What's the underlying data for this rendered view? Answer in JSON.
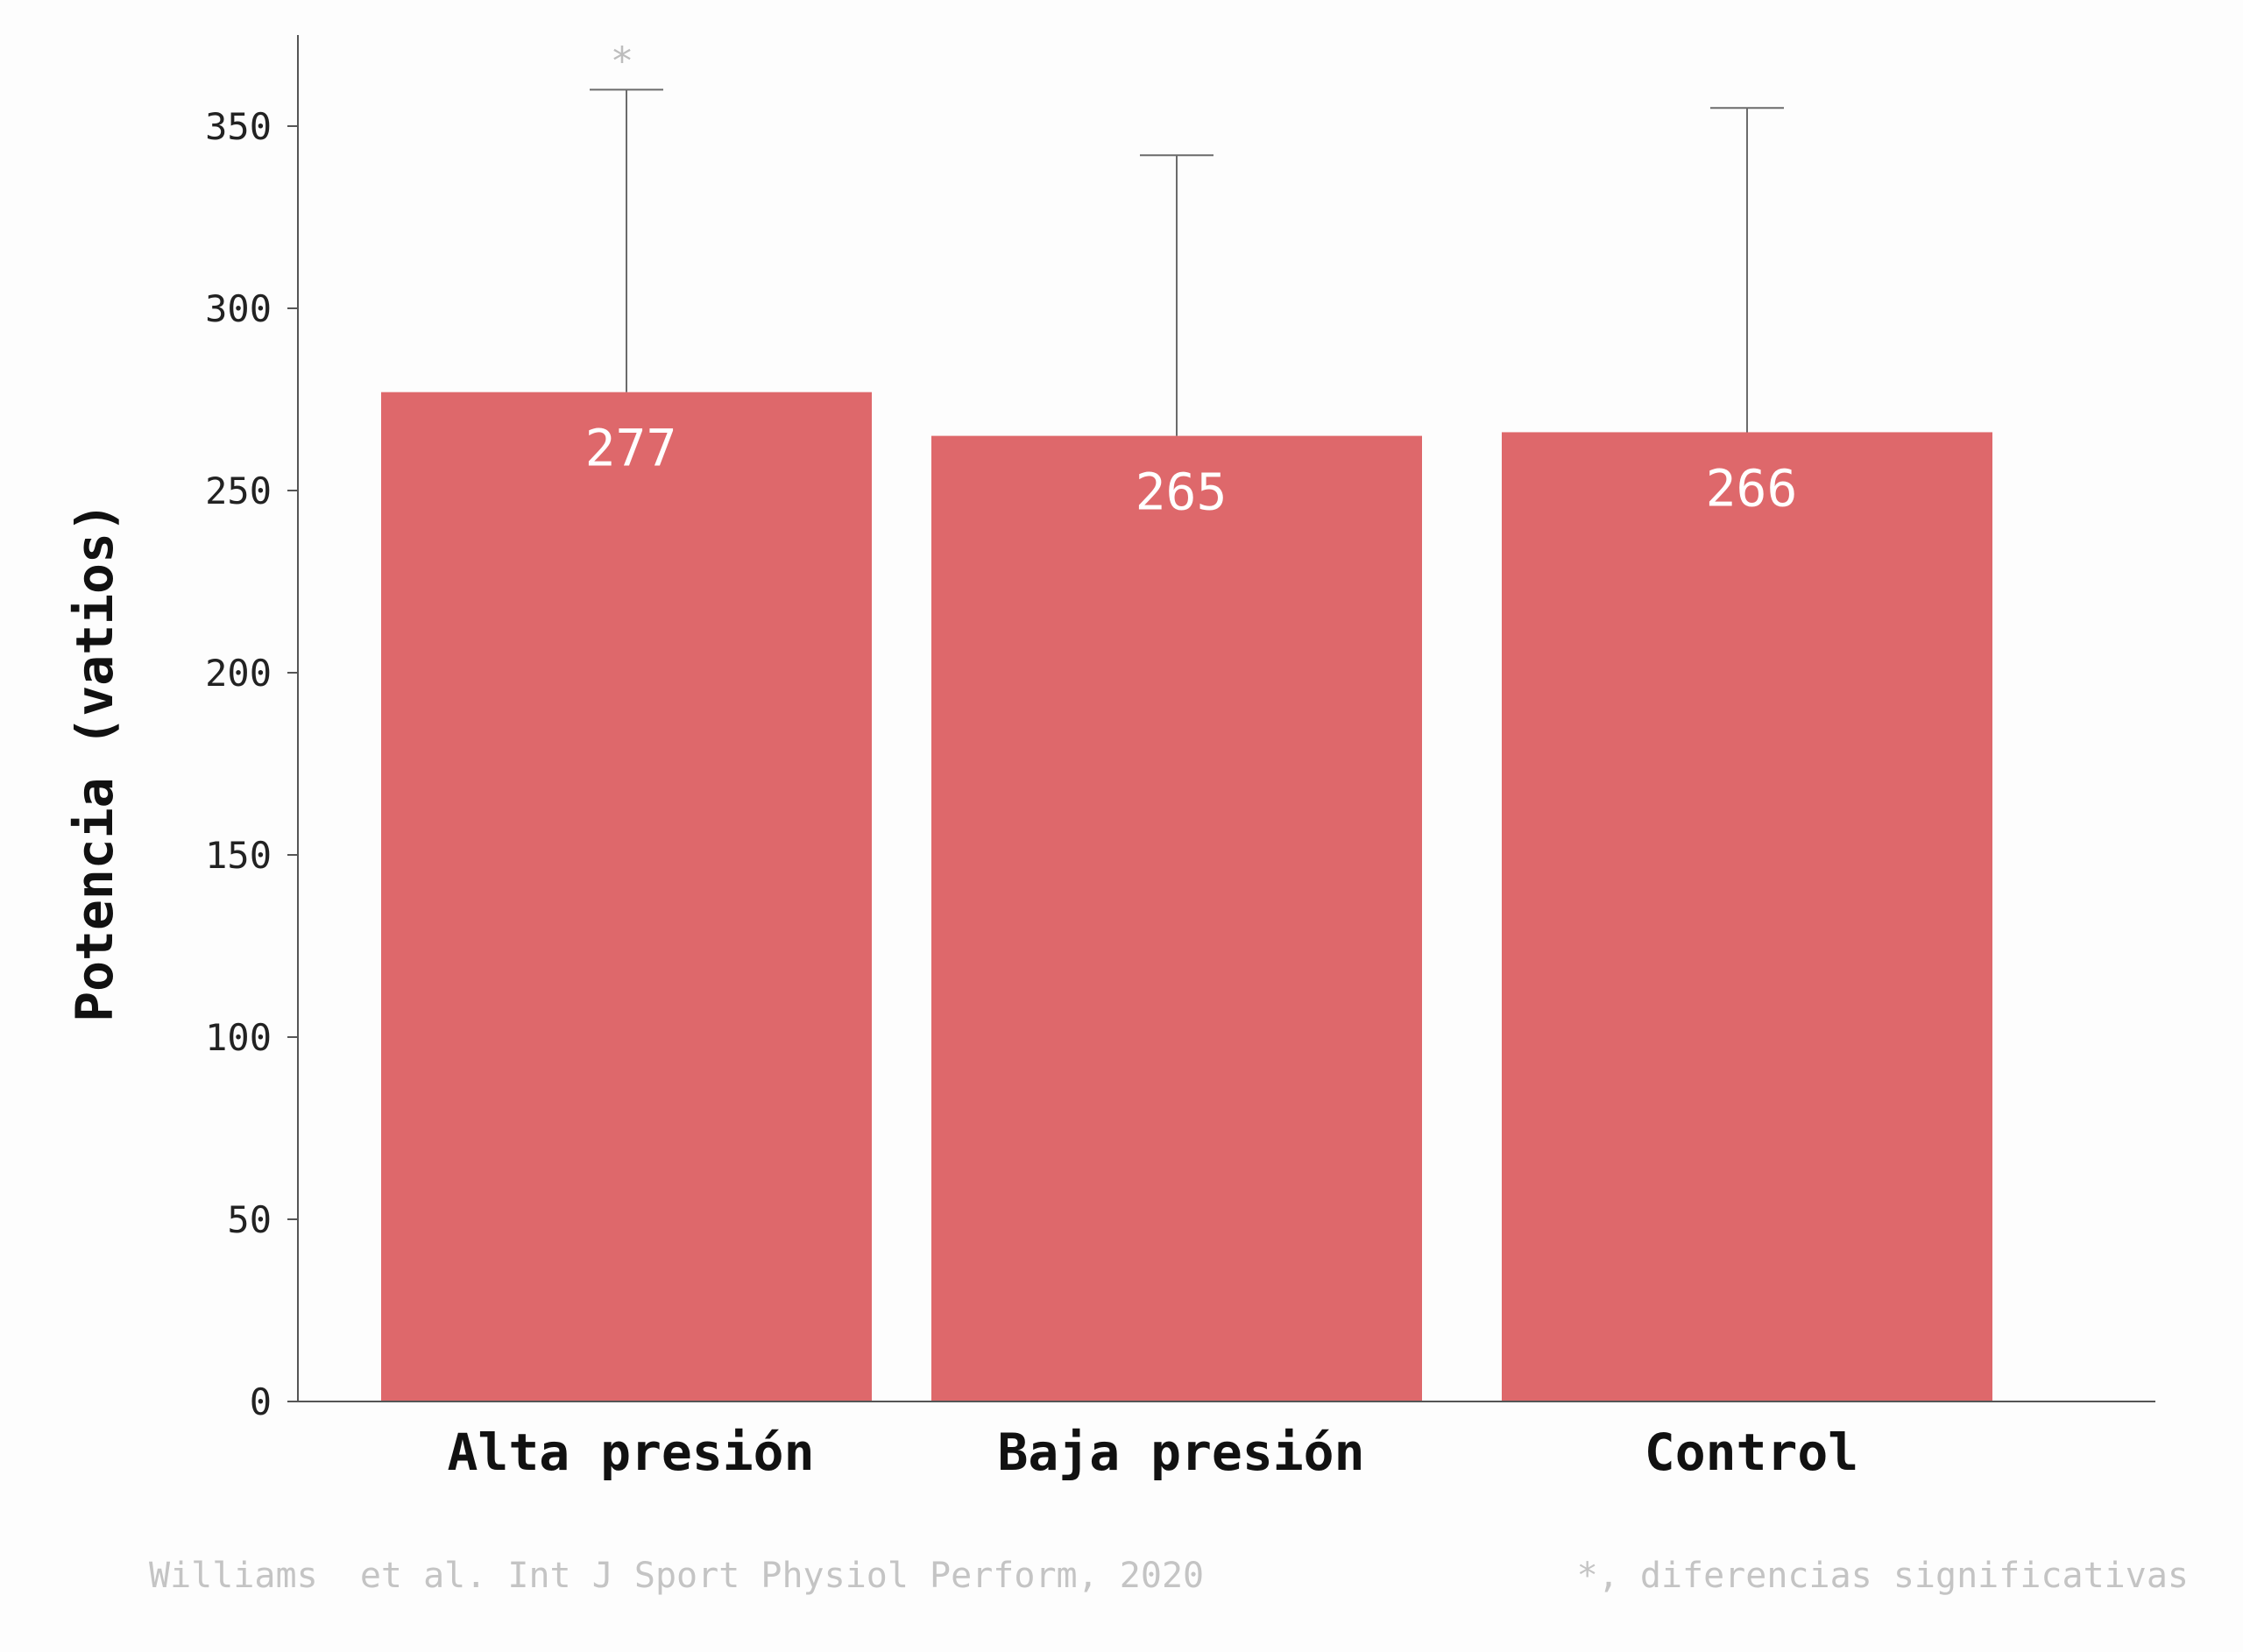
{
  "chart_data": {
    "type": "bar",
    "categories": [
      "Alta presión",
      "Baja presión",
      "Control"
    ],
    "values": [
      277,
      265,
      266
    ],
    "value_labels": [
      "277",
      "265",
      "266"
    ],
    "error_upper": [
      360,
      342,
      355
    ],
    "significance_marks": [
      "*",
      "",
      ""
    ],
    "ylabel": "Potencia (vatios)",
    "xlabel": "",
    "ylim": [
      0,
      375
    ],
    "yticks": [
      0,
      50,
      100,
      150,
      200,
      250,
      300,
      350
    ],
    "ytick_labels": [
      "0",
      "50",
      "100",
      "150",
      "200",
      "250",
      "300",
      "350"
    ],
    "grid": false,
    "legend": "none",
    "colors": {
      "bar": "#de686b",
      "axis": "#555555",
      "error_bar": "#6b6b6b"
    }
  },
  "footer": {
    "source": "Williams  et al. Int J Sport Physiol Perform, 2020",
    "note": "*, diferencias significativas"
  }
}
